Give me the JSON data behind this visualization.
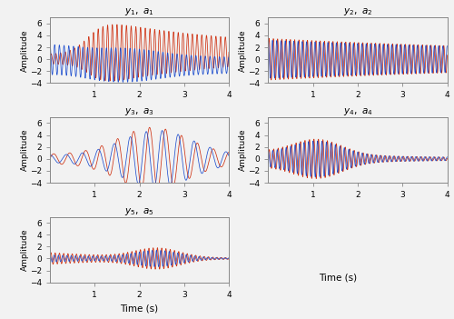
{
  "titles": [
    "$y_1,\\ a_1$",
    "$y_2,\\ a_2$",
    "$y_3,\\ a_3$",
    "$y_4,\\ a_4$",
    "$y_5,\\ a_5$"
  ],
  "xlabel": "Time (s)",
  "ylabel": "Amplitude",
  "xlim": [
    0,
    4
  ],
  "ylim": [
    -4,
    7
  ],
  "yticks": [
    -4,
    -2,
    0,
    2,
    4,
    6
  ],
  "xticks": [
    1,
    2,
    3,
    4
  ],
  "color_red": "#cc2200",
  "color_blue": "#1144cc",
  "background": "#f2f2f2",
  "figsize": [
    5.0,
    3.51
  ],
  "dpi": 100,
  "t_start": 0.0,
  "t_end": 4.0,
  "n_points": 3000
}
